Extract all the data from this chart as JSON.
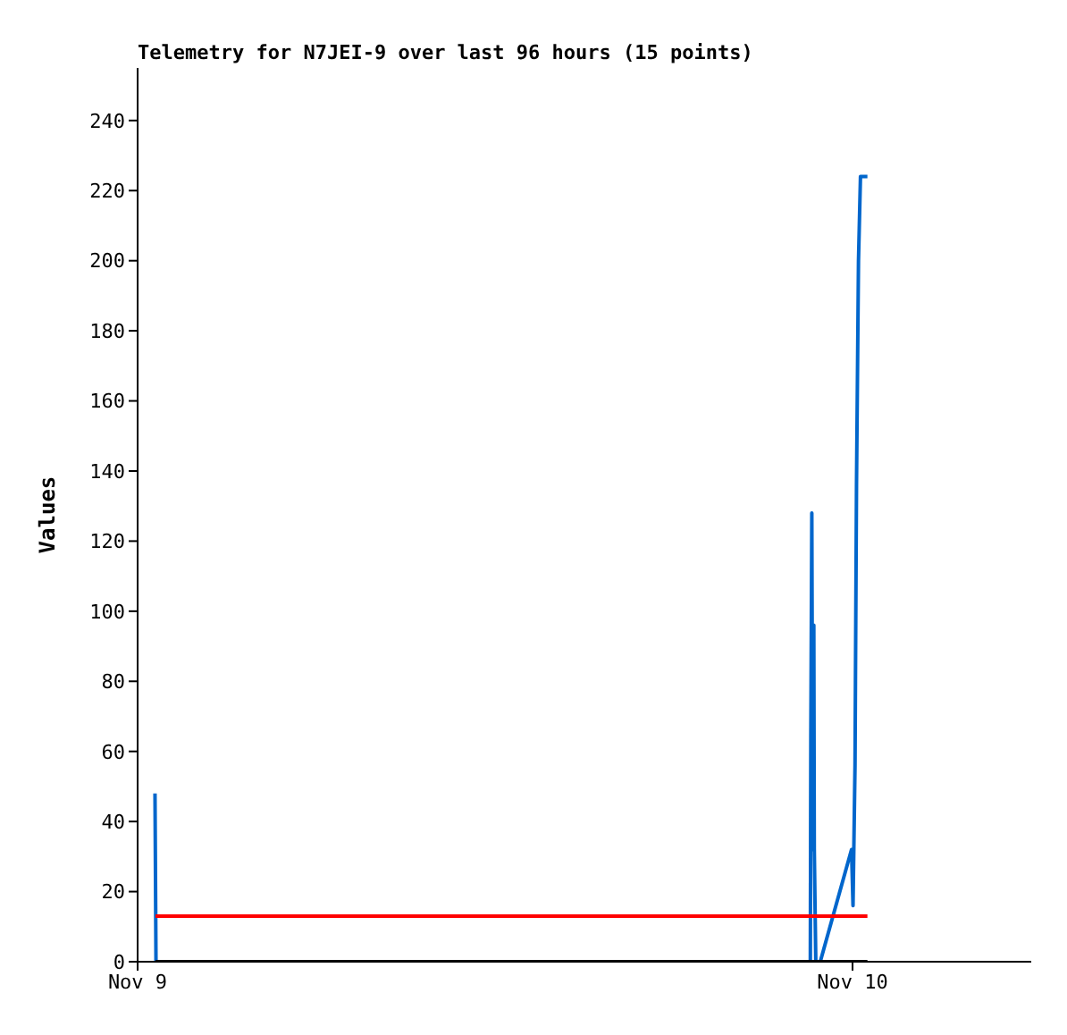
{
  "chart_data": {
    "type": "line",
    "title": "Telemetry for N7JEI-9 over last 96 hours (15 points)",
    "ylabel": "Values",
    "xlim": [
      "--11-09T00:00",
      "--11-10T06:00"
    ],
    "xticks": [
      {
        "value": "--11-09",
        "label": "Nov 9"
      },
      {
        "value": "--11-10",
        "label": "Nov 10"
      }
    ],
    "ylim": [
      0,
      255
    ],
    "yticks": [
      0,
      20,
      40,
      60,
      80,
      100,
      120,
      140,
      160,
      180,
      200,
      220,
      240
    ],
    "grid": false,
    "marker": "none",
    "line_style": "solid",
    "series": [
      {
        "color": "#0066cc",
        "x": [
          "--11-09T00:35",
          "--11-09T00:37",
          "--11-09T22:35",
          "--11-09T22:36",
          "--11-09T22:38",
          "--11-09T22:40",
          "--11-09T22:42",
          "--11-09T22:43",
          "--11-09T22:46",
          "--11-09T22:55",
          "--11-09T23:58",
          "--11-10T00:01",
          "--11-10T00:05",
          "--11-10T00:08",
          "--11-10T00:12",
          "--11-10T00:16",
          "--11-10T00:30"
        ],
        "values": [
          48,
          0,
          0,
          64,
          128,
          32,
          96,
          32,
          0,
          0,
          32,
          16,
          56,
          136,
          200,
          224,
          224
        ]
      },
      {
        "color": "#ff0000",
        "x": [
          "--11-09T00:36",
          "--11-10T00:30"
        ],
        "values": [
          13,
          13
        ]
      },
      {
        "color": "#000000",
        "x": [
          "--11-09T00:36",
          "--11-10T00:30"
        ],
        "values": [
          0,
          0
        ]
      }
    ]
  }
}
